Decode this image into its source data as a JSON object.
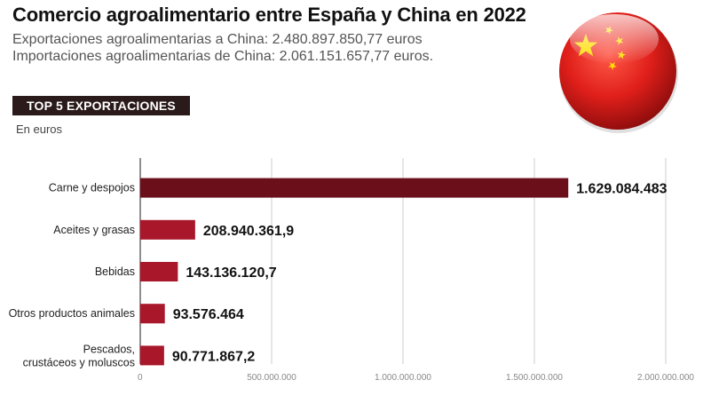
{
  "header": {
    "title": "Comercio agroalimentario entre España y China en 2022",
    "subtitle_exports": "Exportaciones agroalimentarias a China:  2.480.897.850,77 euros",
    "subtitle_imports": "Importaciones agroalimentarias de China: 2.061.151.657,77 euros.",
    "badge": "TOP 5 EXPORTACIONES",
    "units": "En euros"
  },
  "colors": {
    "bar_dark": "#6b0f1a",
    "bar_red": "#a8172a",
    "flag_red": "#d91e18",
    "star_yellow": "#ffde00"
  },
  "icons": {
    "flag": "china-flag-sphere-icon"
  },
  "chart_data": {
    "type": "bar",
    "orientation": "horizontal",
    "categories": [
      "Carne y despojos",
      "Aceites y grasas",
      "Bebidas",
      "Otros productos animales",
      "Pescados, crustáceos y moluscos"
    ],
    "values": [
      1629084483,
      208940361.9,
      143136120.7,
      93576464,
      90771867.2
    ],
    "value_labels": [
      "1.629.084.483",
      "208.940.361,9",
      "143.136.120,7",
      "93.576.464",
      "90.771.867,2"
    ],
    "xlim": [
      0,
      2000000000
    ],
    "xticks": [
      0,
      500000000,
      1000000000,
      1500000000,
      2000000000
    ],
    "xtick_labels": [
      "0",
      "500.000.000",
      "1.000.000.000",
      "1.500.000.000",
      "2.000.000.000"
    ],
    "grid": true
  }
}
